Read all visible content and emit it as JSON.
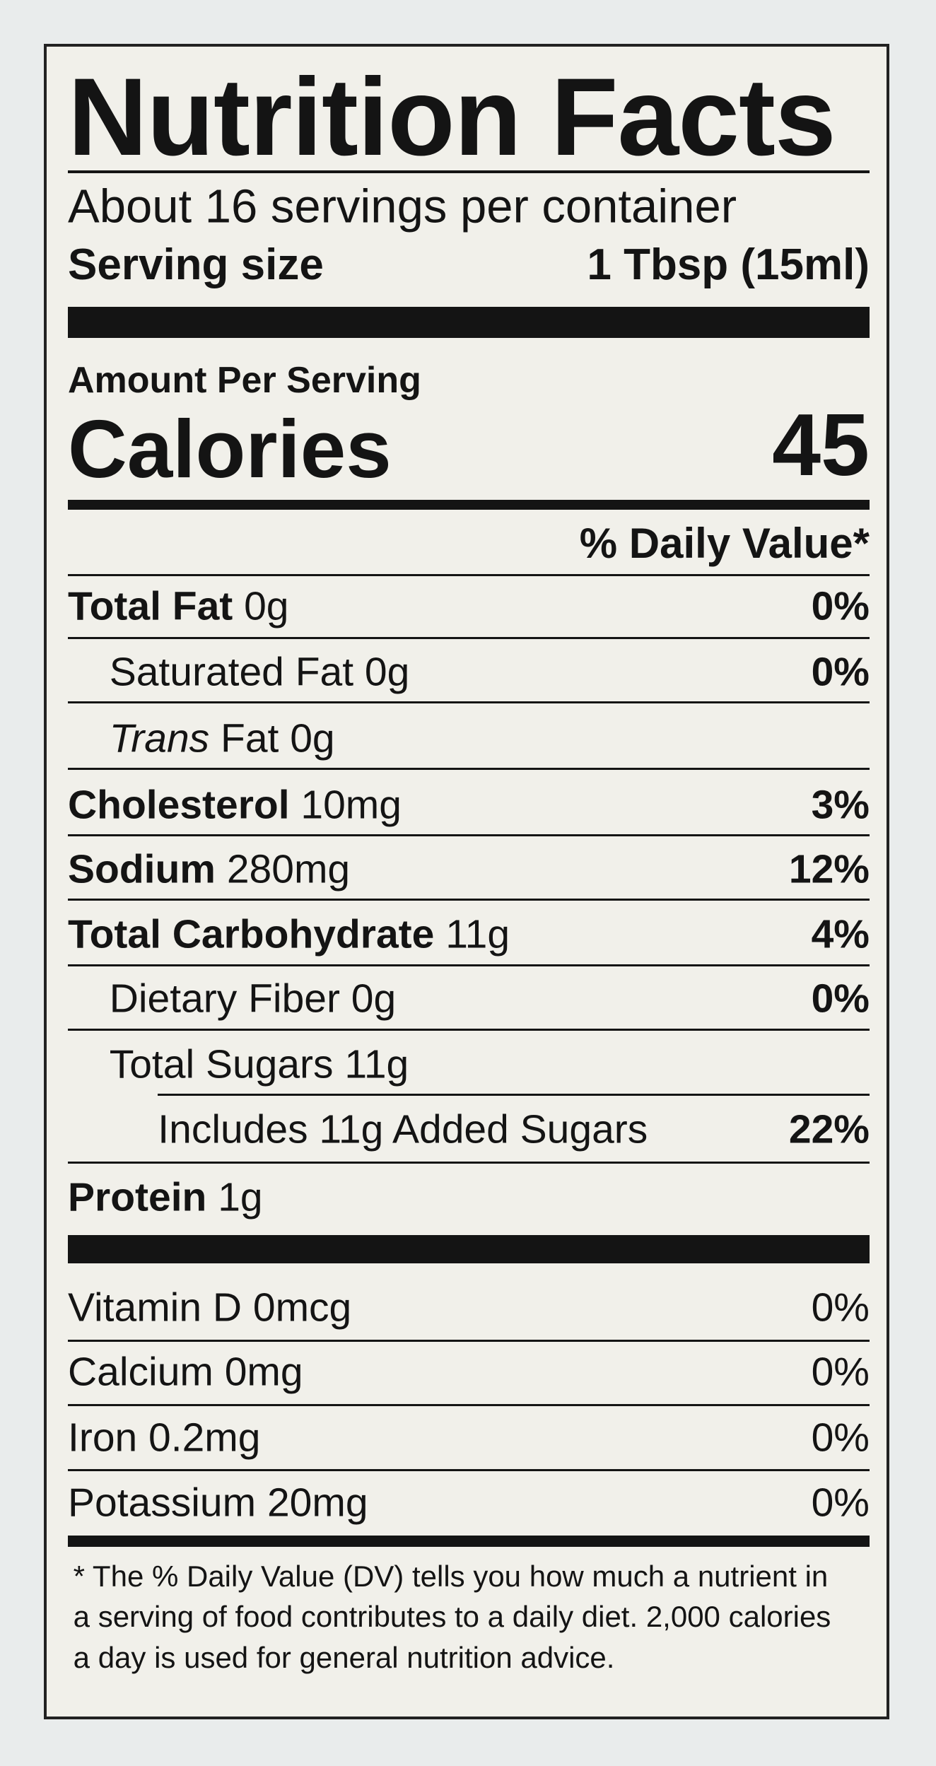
{
  "header": {
    "title": "Nutrition Facts",
    "servings": "About 16 servings per container",
    "serving_size_label": "Serving size",
    "serving_size_value": "1 Tbsp (15ml)"
  },
  "calories": {
    "amount_per_serving": "Amount Per Serving",
    "label": "Calories",
    "value": "45"
  },
  "daily_value_header": "% Daily Value*",
  "nutrients": [
    {
      "label": "Total Fat",
      "amount": "0g",
      "dv": "0%"
    },
    {
      "label": "Saturated Fat",
      "amount": "0g",
      "dv": "0%"
    },
    {
      "label_italic": "Trans",
      "label": "Fat",
      "amount": "0g"
    },
    {
      "label": "Cholesterol",
      "amount": "10mg",
      "dv": "3%"
    },
    {
      "label": "Sodium",
      "amount": "280mg",
      "dv": "12%"
    },
    {
      "label": "Total Carbohydrate",
      "amount": "11g",
      "dv": "4%"
    },
    {
      "label": "Dietary Fiber",
      "amount": "0g",
      "dv": "0%"
    },
    {
      "label": "Total Sugars",
      "amount": "11g"
    },
    {
      "label": "Includes 11g Added Sugars",
      "dv": "22%"
    },
    {
      "label": "Protein",
      "amount": "1g"
    }
  ],
  "vitamins": [
    {
      "label": "Vitamin D 0mcg",
      "dv": "0%"
    },
    {
      "label": "Calcium 0mg",
      "dv": "0%"
    },
    {
      "label": "Iron 0.2mg",
      "dv": "0%"
    },
    {
      "label": "Potassium 20mg",
      "dv": "0%"
    }
  ],
  "footnote": [
    "* The % Daily Value (DV) tells you how much a nutrient in",
    "a serving of food contributes to a daily diet. 2,000 calories",
    "a day is used for general nutrition advice."
  ]
}
